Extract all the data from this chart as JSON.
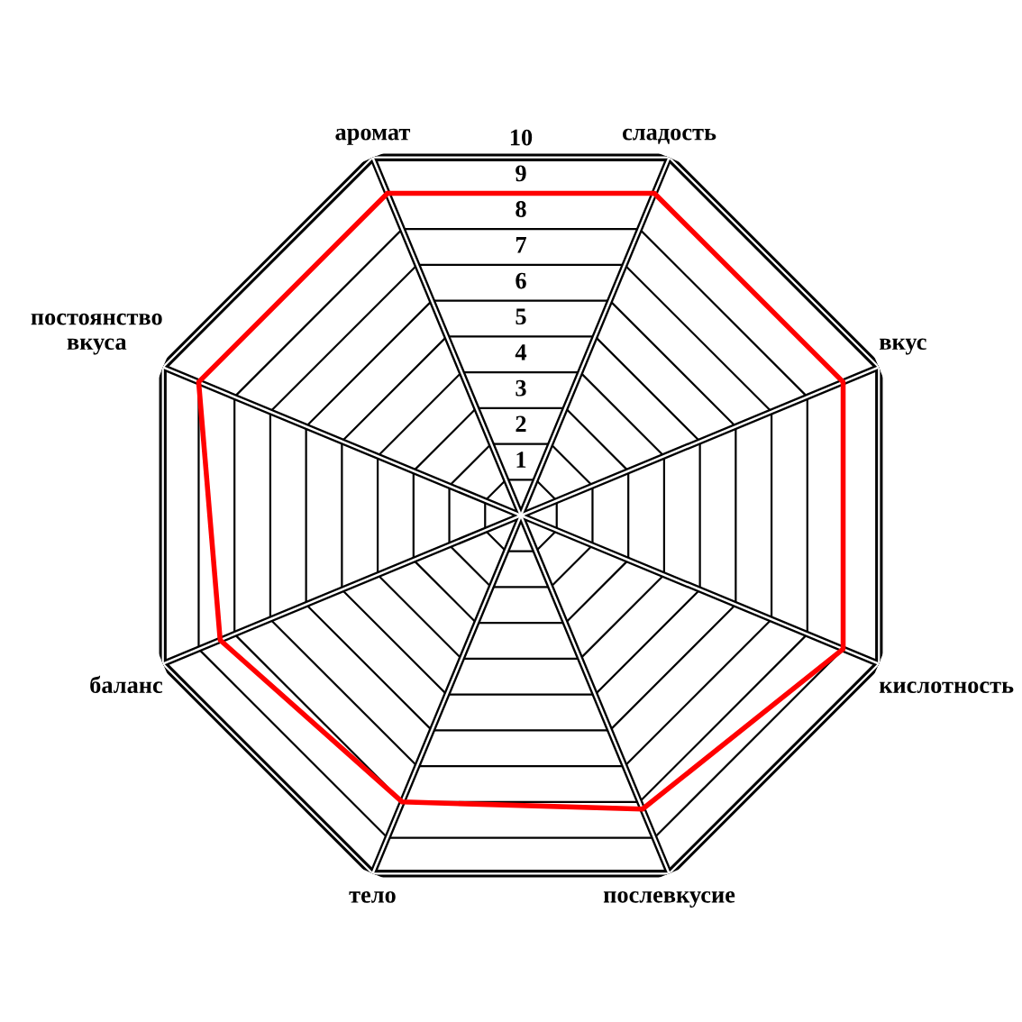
{
  "chart_data": {
    "type": "radar",
    "categories": [
      "аромат",
      "сладость",
      "вкус",
      "кислотность",
      "послевкусие",
      "тело",
      "баланс",
      "постоянство\nвкуса"
    ],
    "series": [
      {
        "color": "#ff0000",
        "values": [
          9,
          9,
          9,
          9,
          8.2,
          8,
          8.4,
          9
        ]
      }
    ],
    "ylim": [
      0,
      10
    ],
    "yticks": [
      1,
      2,
      3,
      4,
      5,
      6,
      7,
      8,
      9,
      10
    ],
    "grid": true
  }
}
